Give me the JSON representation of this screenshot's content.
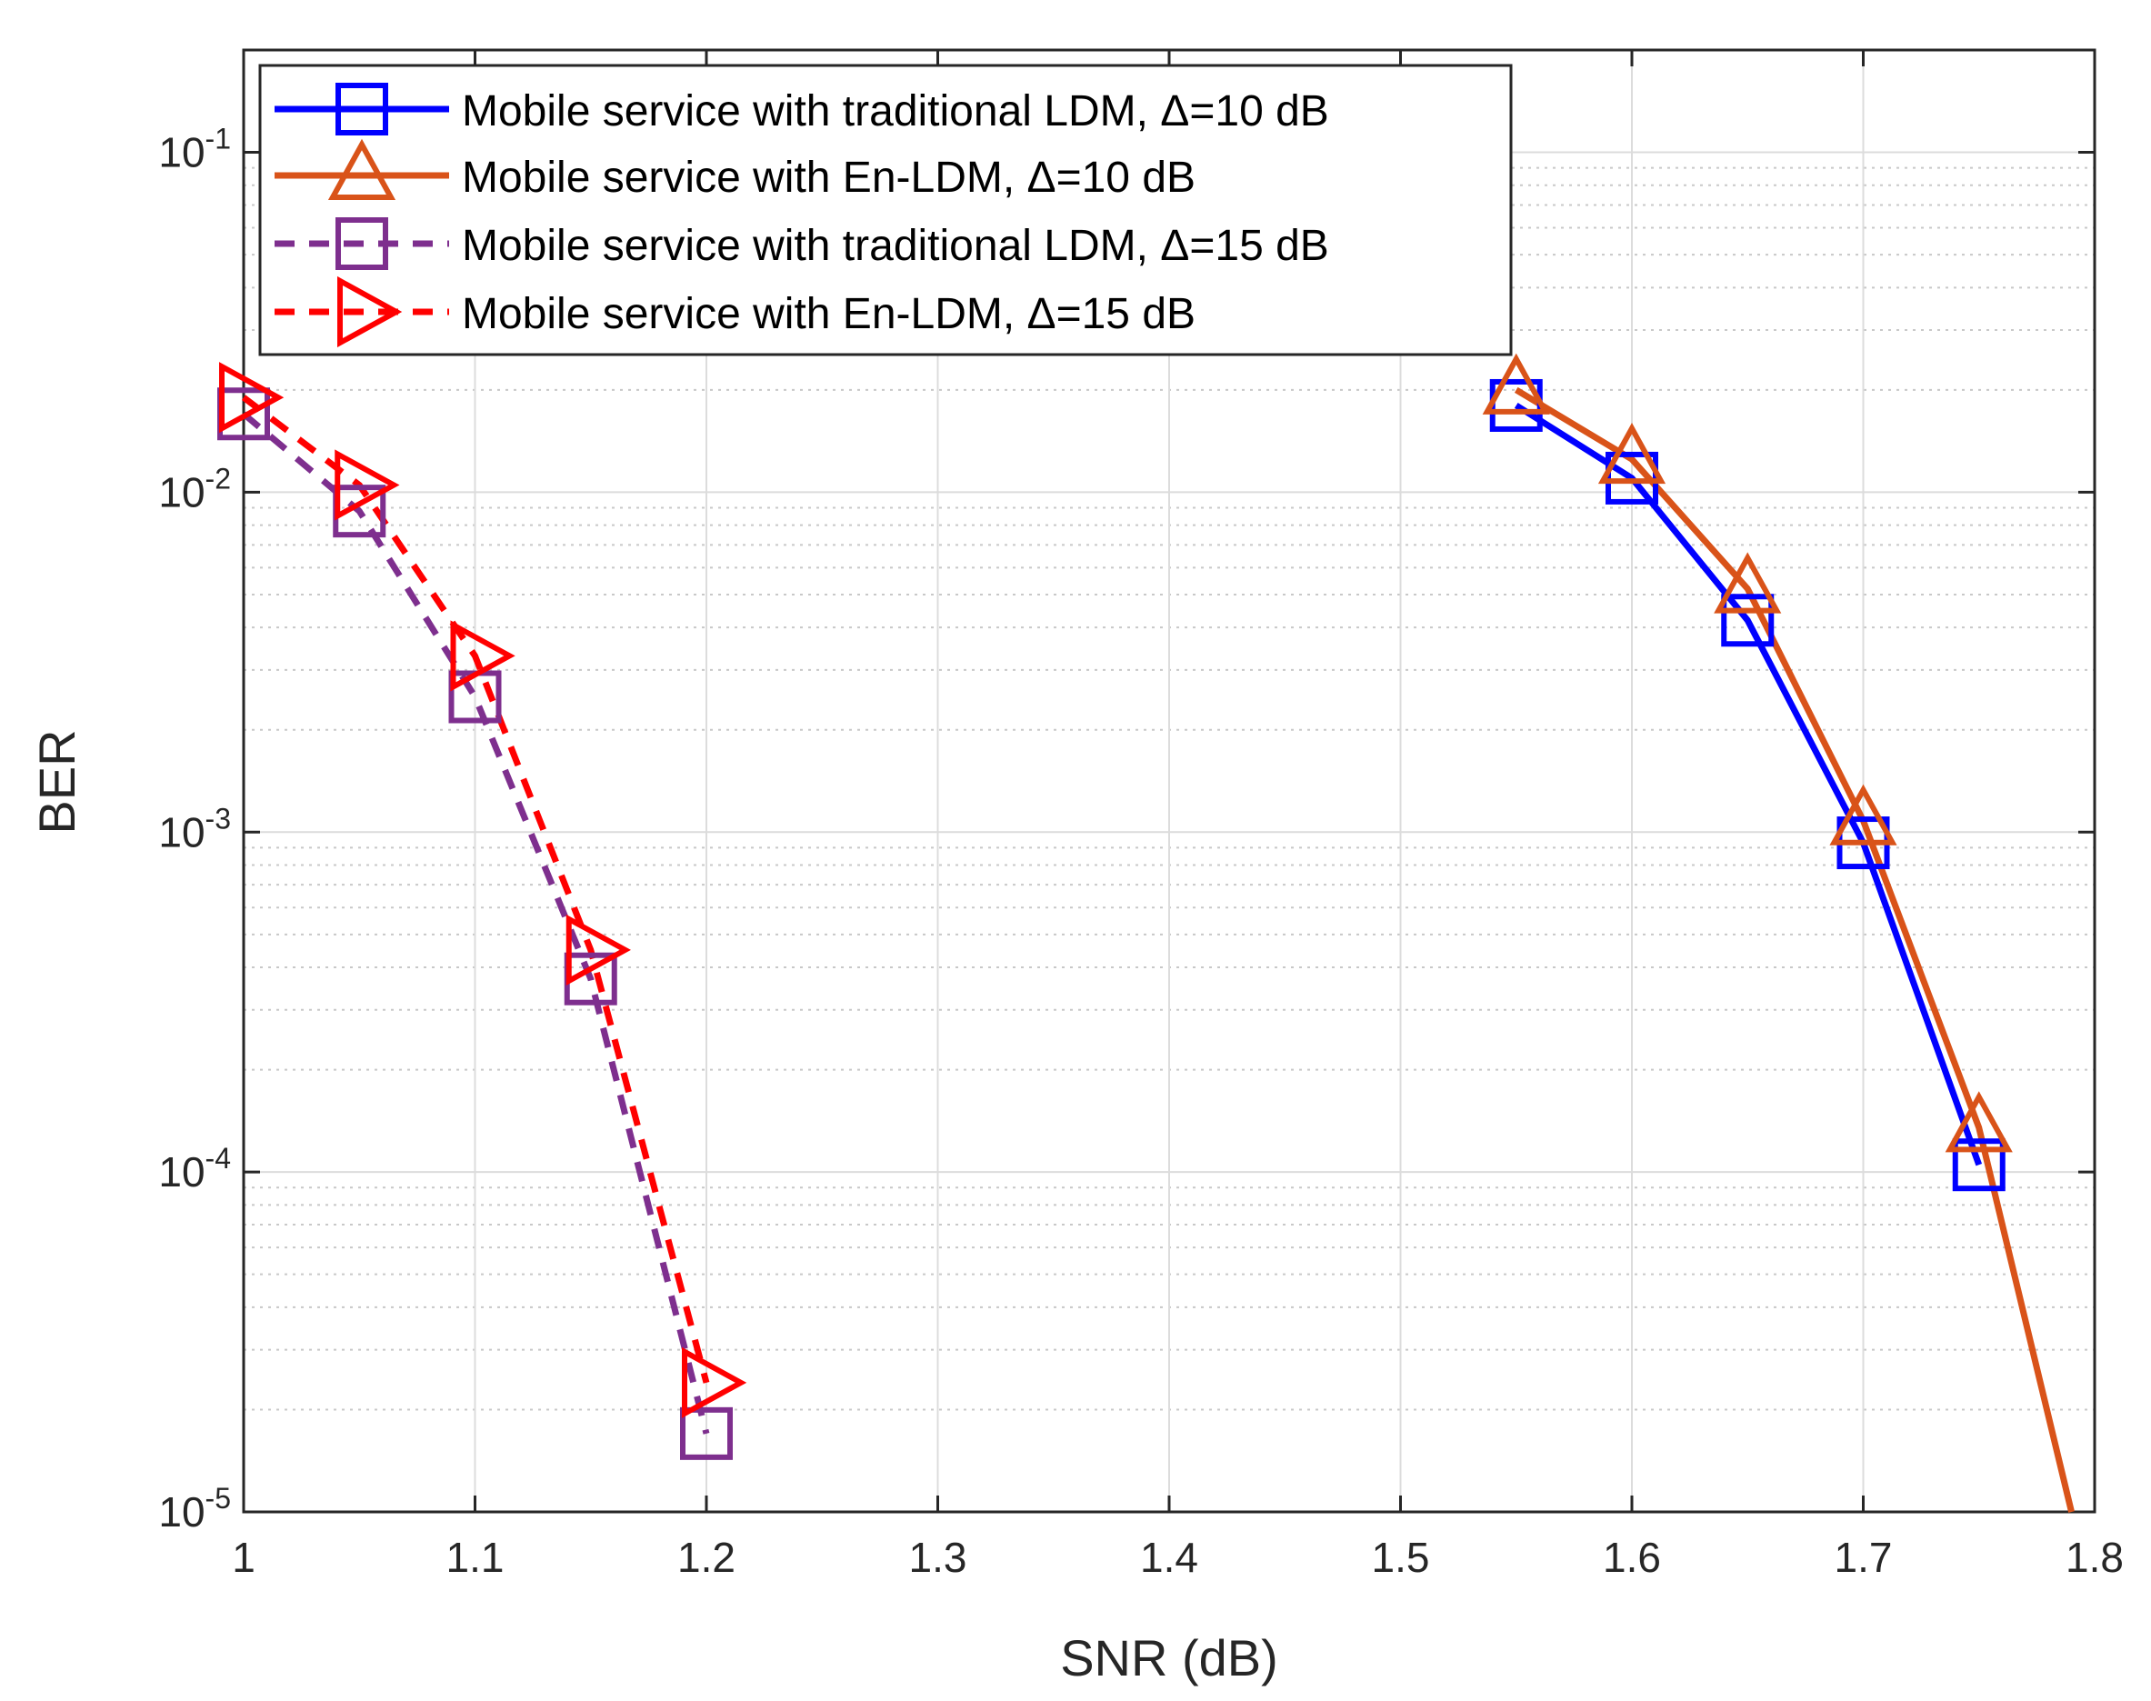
{
  "chart_data": {
    "type": "line",
    "title": "",
    "xlabel": "SNR (dB)",
    "ylabel": "BER",
    "xlim": [
      1,
      1.8
    ],
    "ylim": [
      1e-05,
      0.2
    ],
    "yscale": "log",
    "grid": true,
    "legend_position": "top-left",
    "x_ticks": [
      "1",
      "1.1",
      "1.2",
      "1.3",
      "1.4",
      "1.5",
      "1.6",
      "1.7",
      "1.8"
    ],
    "y_ticks": [
      {
        "base": "10",
        "exp": "-5"
      },
      {
        "base": "10",
        "exp": "-4"
      },
      {
        "base": "10",
        "exp": "-3"
      },
      {
        "base": "10",
        "exp": "-2"
      },
      {
        "base": "10",
        "exp": "-1"
      }
    ],
    "series": [
      {
        "name": "Mobile service with traditional LDM, Δ=10 dB",
        "color": "#0000ff",
        "line_style": "solid",
        "marker": "square",
        "x": [
          1.55,
          1.6,
          1.65,
          1.7,
          1.75
        ],
        "y": [
          0.018,
          0.011,
          0.0042,
          0.00093,
          0.000105
        ]
      },
      {
        "name": "Mobile service with En-LDM, Δ=10 dB",
        "color": "#d95319",
        "line_style": "solid",
        "marker": "triangle-up",
        "x": [
          1.55,
          1.6,
          1.65,
          1.7,
          1.75,
          1.79
        ],
        "y": [
          0.02,
          0.0125,
          0.0052,
          0.00108,
          0.000135,
          1e-05
        ]
      },
      {
        "name": "Mobile service with traditional LDM, Δ=15 dB",
        "color": "#7e2f8e",
        "line_style": "dashed",
        "marker": "square",
        "x": [
          1.0,
          1.05,
          1.1,
          1.15,
          1.2
        ],
        "y": [
          0.017,
          0.0088,
          0.0025,
          0.00037,
          1.7e-05
        ]
      },
      {
        "name": "Mobile service with En-LDM, Δ=15 dB",
        "color": "#ff0000",
        "line_style": "dashed",
        "marker": "triangle-right",
        "x": [
          1.0,
          1.05,
          1.1,
          1.15,
          1.2
        ],
        "y": [
          0.019,
          0.0105,
          0.0033,
          0.00045,
          2.4e-05
        ]
      }
    ]
  }
}
